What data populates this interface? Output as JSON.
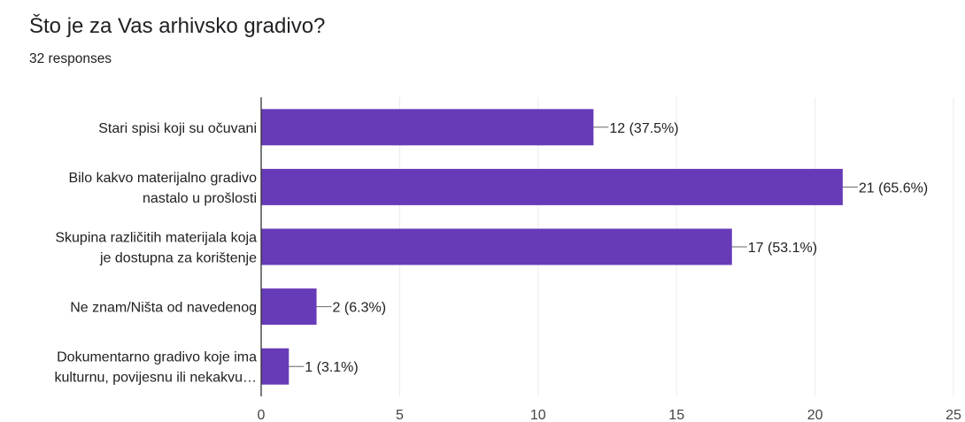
{
  "question": {
    "title": "Što je za Vas arhivsko gradivo?",
    "responses": "32 responses"
  },
  "colors": {
    "bar": "#673ab7",
    "grid": "#ebebeb",
    "axis": "#333333",
    "text": "#202124"
  },
  "chart_data": {
    "type": "bar",
    "orientation": "horizontal",
    "categories": [
      [
        "Stari spisi koji su očuvani"
      ],
      [
        "Bilo kakvo materijalno gradivo",
        "nastalo u prošlosti"
      ],
      [
        "Skupina različitih materijala koja",
        "je dostupna za korištenje"
      ],
      [
        "Ne znam/Ništa od navedenog"
      ],
      [
        "Dokumentarno gradivo koje ima",
        "kulturnu, povijesnu ili nekakvu…"
      ]
    ],
    "values": [
      12,
      21,
      17,
      2,
      1
    ],
    "data_labels": [
      "12 (37.5%)",
      "21 (65.6%)",
      "17 (53.1%)",
      "2 (6.3%)",
      "1 (3.1%)"
    ],
    "xlim": [
      0,
      25
    ],
    "xticks": [
      0,
      5,
      10,
      15,
      20,
      25
    ],
    "grid": true
  }
}
